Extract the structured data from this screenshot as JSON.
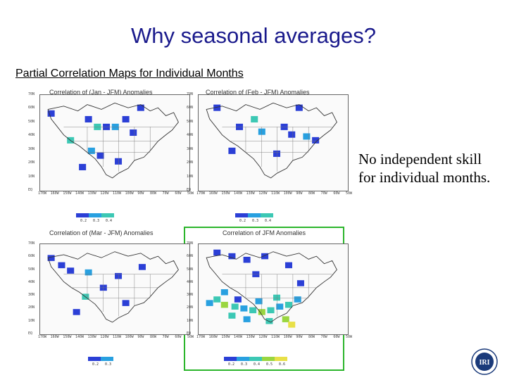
{
  "slide": {
    "title": "Why seasonal averages?",
    "subtitle": "Partial Correlation Maps for Individual Months",
    "side_text": "No independent skill for individual months.",
    "logo_text": "IRI"
  },
  "panels": [
    {
      "title": "Correlation of (Jan - JFM) Anomalies",
      "lat_labels": [
        "70N",
        "60N",
        "50N",
        "40N",
        "30N",
        "20N",
        "10N",
        "EQ"
      ],
      "lon_labels": [
        "170W",
        "160W",
        "150W",
        "140W",
        "130W",
        "120W",
        "110W",
        "100W",
        "90W",
        "80W",
        "70W",
        "60W",
        "50W"
      ],
      "colorbar_ticks": [
        "0.2",
        "0.3",
        "0.4"
      ],
      "highlighted": false
    },
    {
      "title": "Correlation of (Feb - JFM) Anomalies",
      "lat_labels": [
        "70N",
        "60N",
        "50N",
        "40N",
        "30N",
        "20N",
        "10N",
        "EQ"
      ],
      "lon_labels": [
        "170W",
        "160W",
        "150W",
        "140W",
        "130W",
        "120W",
        "110W",
        "100W",
        "90W",
        "80W",
        "70W",
        "60W",
        "50W"
      ],
      "colorbar_ticks": [
        "0.2",
        "0.3",
        "0.4"
      ],
      "highlighted": false
    },
    {
      "title": "Correlation of (Mar - JFM) Anomalies",
      "lat_labels": [
        "70N",
        "60N",
        "50N",
        "40N",
        "30N",
        "20N",
        "10N",
        "EQ"
      ],
      "lon_labels": [
        "170W",
        "160W",
        "150W",
        "140W",
        "130W",
        "120W",
        "110W",
        "100W",
        "90W",
        "80W",
        "70W",
        "60W",
        "50W"
      ],
      "colorbar_ticks": [
        "0.2",
        "0.3"
      ],
      "highlighted": false
    },
    {
      "title": "Correlation of JFM Anomalies",
      "lat_labels": [
        "70N",
        "60N",
        "50N",
        "40N",
        "30N",
        "20N",
        "10N",
        "EQ"
      ],
      "lon_labels": [
        "170W",
        "160W",
        "150W",
        "140W",
        "130W",
        "120W",
        "110W",
        "100W",
        "90W",
        "80W",
        "70W",
        "60W",
        "50W"
      ],
      "colorbar_ticks": [
        "0.2",
        "0.3",
        "0.4",
        "0.5",
        "0.6"
      ],
      "highlighted": true
    }
  ],
  "colors": {
    "title": "#1a1a8c",
    "highlight_border": "#2bb52b",
    "c1": "#2b3fd6",
    "c2": "#28a0e0",
    "c3": "#3cc8b4",
    "c4": "#9ad640",
    "c5": "#e8e048"
  }
}
